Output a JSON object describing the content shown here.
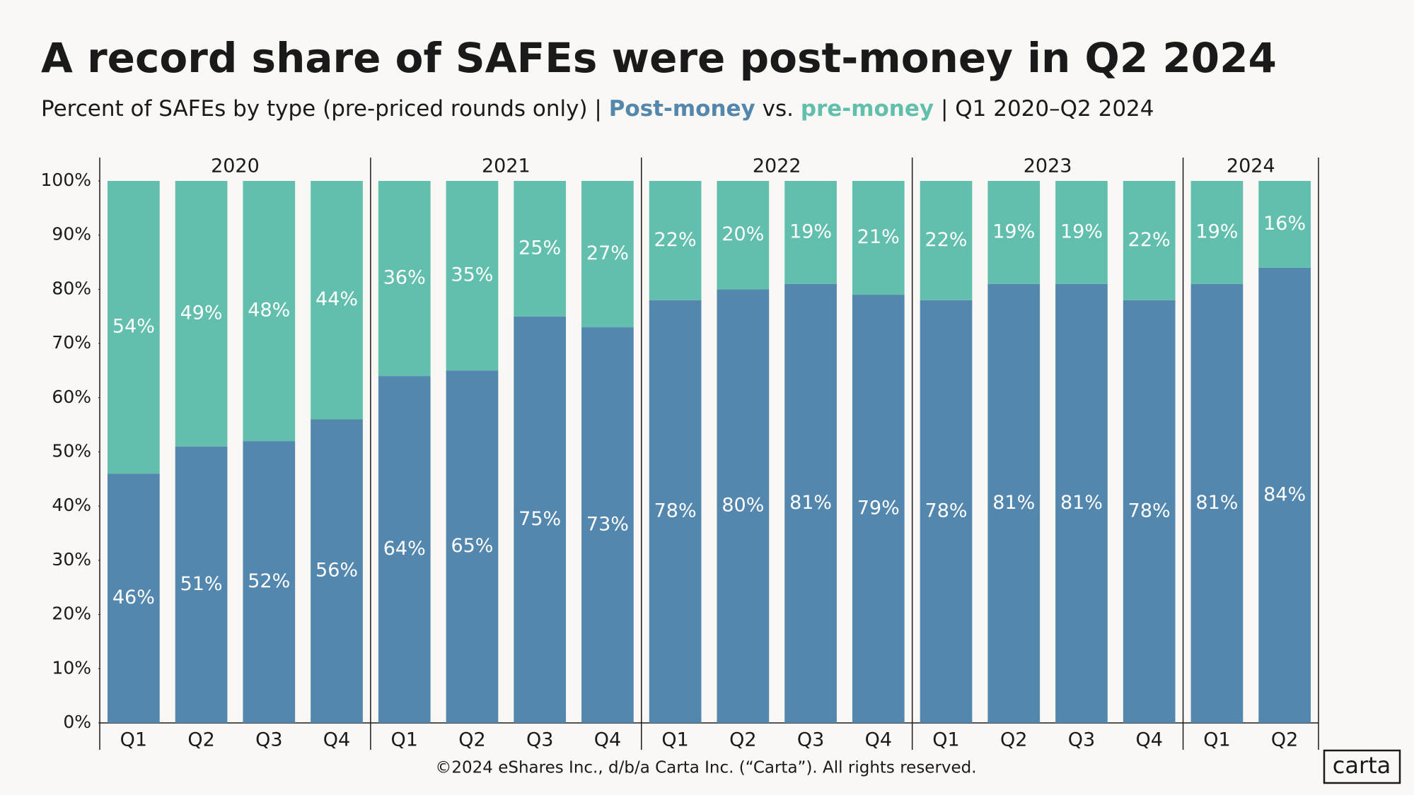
{
  "chart_data": {
    "type": "stacked_bar",
    "title": "A record share of SAFEs were post-money in Q2 2024",
    "subtitle": {
      "before": "Percent of SAFEs by type (pre-priced rounds only) | ",
      "between": " vs. ",
      "after": " |  Q1 2020–Q2 2024"
    },
    "groups": [
      {
        "label": "2020",
        "categories": [
          "Q1",
          "Q2",
          "Q3",
          "Q4"
        ]
      },
      {
        "label": "2021",
        "categories": [
          "Q1",
          "Q2",
          "Q3",
          "Q4"
        ]
      },
      {
        "label": "2022",
        "categories": [
          "Q1",
          "Q2",
          "Q3",
          "Q4"
        ]
      },
      {
        "label": "2023",
        "categories": [
          "Q1",
          "Q2",
          "Q3",
          "Q4"
        ]
      },
      {
        "label": "2024",
        "categories": [
          "Q1",
          "Q2"
        ]
      }
    ],
    "series": [
      {
        "name": "Post-money",
        "color": "#5387ad",
        "values": [
          46,
          51,
          52,
          56,
          64,
          65,
          75,
          73,
          78,
          80,
          81,
          79,
          78,
          81,
          81,
          78,
          81,
          84
        ],
        "value_labels": [
          "46%",
          "51%",
          "52%",
          "56%",
          "64%",
          "65%",
          "75%",
          "73%",
          "78%",
          "80%",
          "81%",
          "79%",
          "78%",
          "81%",
          "81%",
          "78%",
          "81%",
          "84%"
        ]
      },
      {
        "name": "pre-money",
        "color": "#62bfad",
        "values": [
          54,
          49,
          48,
          44,
          36,
          35,
          25,
          27,
          22,
          20,
          19,
          21,
          22,
          19,
          19,
          22,
          19,
          16
        ],
        "value_labels": [
          "54%",
          "49%",
          "48%",
          "44%",
          "36%",
          "35%",
          "25%",
          "27%",
          "22%",
          "20%",
          "19%",
          "21%",
          "22%",
          "19%",
          "19%",
          "22%",
          "19%",
          "16%"
        ]
      }
    ],
    "ylim": [
      0,
      100
    ],
    "yticks": [
      {
        "value": 0,
        "label": "0%"
      },
      {
        "value": 10,
        "label": "10%"
      },
      {
        "value": 20,
        "label": "20%"
      },
      {
        "value": 30,
        "label": "30%"
      },
      {
        "value": 40,
        "label": "40%"
      },
      {
        "value": 50,
        "label": "50%"
      },
      {
        "value": 60,
        "label": "60%"
      },
      {
        "value": 70,
        "label": "70%"
      },
      {
        "value": 80,
        "label": "80%"
      },
      {
        "value": 90,
        "label": "90%"
      },
      {
        "value": 100,
        "label": "100%"
      }
    ],
    "footer": "©2024 eShares Inc., d/b/a Carta Inc. (“Carta”). All rights reserved.",
    "logo": "carta"
  }
}
